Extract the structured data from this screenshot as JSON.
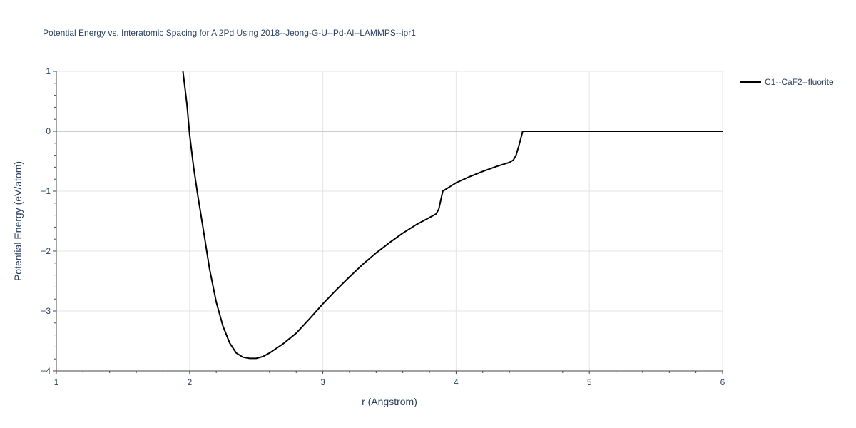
{
  "chart_data": {
    "type": "line",
    "title": "Potential Energy vs. Interatomic Spacing for Al2Pd Using 2018--Jeong-G-U--Pd-Al--LAMMPS--ipr1",
    "xlabel": "r (Angstrom)",
    "ylabel": "Potential Energy (eV/atom)",
    "xlim": [
      1,
      6
    ],
    "ylim": [
      -4,
      1
    ],
    "xticks": [
      1,
      2,
      3,
      4,
      5,
      6
    ],
    "yticks": [
      1,
      0,
      -1,
      -2,
      -3,
      -4
    ],
    "ytick_labels": [
      "1",
      "0",
      "−1",
      "−2",
      "−3",
      "−4"
    ],
    "grid": true,
    "legend_position": "top-right",
    "series": [
      {
        "name": "C1--CaF2--fluorite",
        "color": "#000000",
        "x": [
          1.95,
          1.98,
          2.0,
          2.03,
          2.06,
          2.1,
          2.15,
          2.2,
          2.25,
          2.3,
          2.35,
          2.4,
          2.45,
          2.5,
          2.55,
          2.6,
          2.7,
          2.8,
          2.9,
          3.0,
          3.1,
          3.2,
          3.3,
          3.4,
          3.5,
          3.6,
          3.7,
          3.8,
          3.85,
          3.87,
          3.9,
          4.0,
          4.1,
          4.2,
          4.3,
          4.4,
          4.43,
          4.45,
          4.47,
          4.5,
          4.6,
          5.0,
          5.5,
          6.0
        ],
        "y": [
          1.0,
          0.45,
          -0.05,
          -0.6,
          -1.05,
          -1.6,
          -2.3,
          -2.85,
          -3.25,
          -3.53,
          -3.7,
          -3.77,
          -3.79,
          -3.79,
          -3.76,
          -3.7,
          -3.55,
          -3.37,
          -3.13,
          -2.88,
          -2.65,
          -2.43,
          -2.22,
          -2.03,
          -1.86,
          -1.7,
          -1.56,
          -1.44,
          -1.38,
          -1.3,
          -1.0,
          -0.86,
          -0.76,
          -0.67,
          -0.59,
          -0.52,
          -0.48,
          -0.4,
          -0.25,
          0.0,
          0.0,
          0.0,
          0.0,
          0.0
        ]
      }
    ]
  }
}
